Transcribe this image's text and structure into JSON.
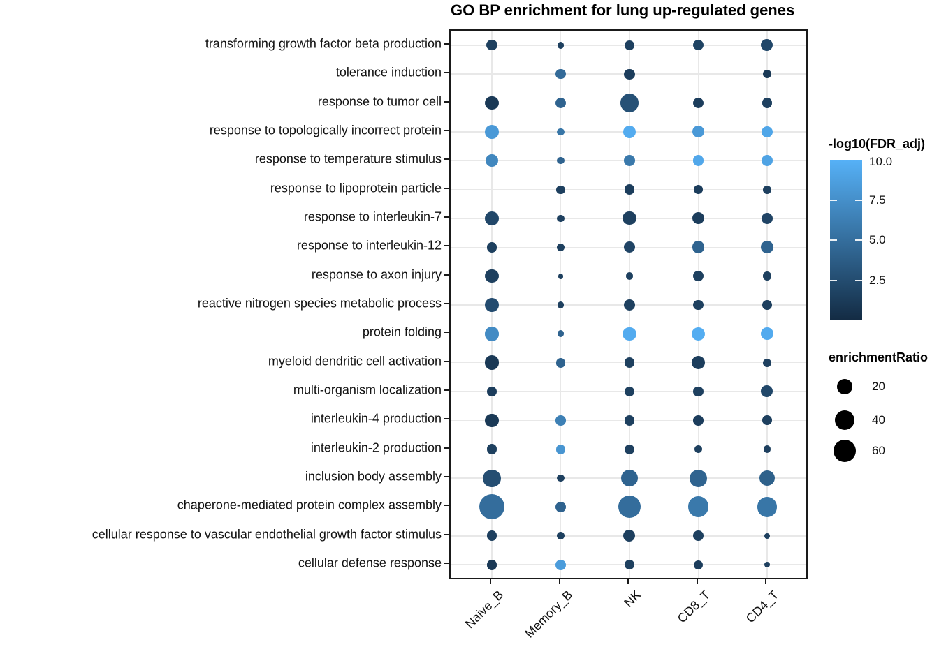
{
  "title": "GO BP enrichment for lung up-regulated genes",
  "legend_fdr": {
    "title": "-log10(FDR_adj)",
    "tick_labels": [
      "10.0",
      "7.5",
      "5.0",
      "2.5"
    ]
  },
  "legend_size": {
    "title": "enrichmentRatio",
    "labels": [
      "20",
      "40",
      "60"
    ]
  },
  "chart_data": {
    "type": "scatter",
    "subtype": "bubble-matrix-dotplot",
    "title": "GO BP enrichment for lung up-regulated genes",
    "x_categories": [
      "Naive_B",
      "Memory_B",
      "NK",
      "CD8_T",
      "CD4_T"
    ],
    "y_categories": [
      "transforming growth factor beta production",
      "tolerance induction",
      "response to tumor cell",
      "response to topologically incorrect protein",
      "response to temperature stimulus",
      "response to lipoprotein particle",
      "response to interleukin-7",
      "response to interleukin-12",
      "response to axon injury",
      "reactive nitrogen species metabolic process",
      "protein folding",
      "myeloid dendritic cell activation",
      "multi-organism localization",
      "interleukin-4 production",
      "interleukin-2 production",
      "inclusion body assembly",
      "chaperone-mediated protein complex assembly",
      "cellular response to vascular endothelial growth factor stimulus",
      "cellular defense response"
    ],
    "size_variable": "enrichmentRatio",
    "color_variable": "-log10(FDR_adj)",
    "color_scale": {
      "low_color": "#132B43",
      "high_color": "#56B1F7",
      "domain": [
        0.5,
        10
      ],
      "ticks": [
        10.0,
        7.5,
        5.0,
        2.5
      ]
    },
    "size_legend_values": [
      20,
      40,
      60
    ],
    "grid": true,
    "legend_position": "right",
    "cells": [
      [
        {
          "er": 7,
          "fdr": 2.0
        },
        {
          "er": 1,
          "fdr": 2.0
        },
        {
          "er": 5.5,
          "fdr": 2.0
        },
        {
          "er": 7,
          "fdr": 2.2
        },
        {
          "er": 10,
          "fdr": 2.5
        }
      ],
      [
        null,
        {
          "er": 5.5,
          "fdr": 5.0
        },
        {
          "er": 7,
          "fdr": 1.8
        },
        null,
        {
          "er": 3,
          "fdr": 1.5
        }
      ],
      [
        {
          "er": 14,
          "fdr": 1.5
        },
        {
          "er": 8,
          "fdr": 4.5
        },
        {
          "er": 36,
          "fdr": 3.2
        },
        {
          "er": 7,
          "fdr": 1.8
        },
        {
          "er": 5.5,
          "fdr": 2.0
        }
      ],
      [
        {
          "er": 16,
          "fdr": 8.3
        },
        {
          "er": 1.5,
          "fdr": 5.8
        },
        {
          "er": 13,
          "fdr": 9.6
        },
        {
          "er": 10,
          "fdr": 8.3
        },
        {
          "er": 9,
          "fdr": 9.2
        }
      ],
      [
        {
          "er": 12,
          "fdr": 7.0
        },
        {
          "er": 1.5,
          "fdr": 4.5
        },
        {
          "er": 8,
          "fdr": 6.0
        },
        {
          "er": 8,
          "fdr": 9.3
        },
        {
          "er": 8,
          "fdr": 9.0
        }
      ],
      [
        null,
        {
          "er": 3,
          "fdr": 2.0
        },
        {
          "er": 6.5,
          "fdr": 1.8
        },
        {
          "er": 4,
          "fdr": 1.8
        },
        {
          "er": 3,
          "fdr": 2.0
        }
      ],
      [
        {
          "er": 18,
          "fdr": 2.5
        },
        {
          "er": 1.5,
          "fdr": 2.0
        },
        {
          "er": 14,
          "fdr": 2.0
        },
        {
          "er": 10,
          "fdr": 1.8
        },
        {
          "er": 8,
          "fdr": 2.3
        }
      ],
      [
        {
          "er": 6.5,
          "fdr": 2.0
        },
        {
          "er": 2,
          "fdr": 2.0
        },
        {
          "er": 8,
          "fdr": 2.3
        },
        {
          "er": 11,
          "fdr": 4.5
        },
        {
          "er": 12,
          "fdr": 4.5
        }
      ],
      [
        {
          "er": 14,
          "fdr": 2.0
        },
        {
          "er": 0.3,
          "fdr": 2.0
        },
        {
          "er": 2,
          "fdr": 2.0
        },
        {
          "er": 6.5,
          "fdr": 2.0
        },
        {
          "er": 4,
          "fdr": 2.0
        }
      ],
      [
        {
          "er": 16,
          "fdr": 2.8
        },
        {
          "er": 1.3,
          "fdr": 2.0
        },
        {
          "er": 8,
          "fdr": 2.0
        },
        {
          "er": 6.5,
          "fdr": 2.0
        },
        {
          "er": 5,
          "fdr": 2.0
        }
      ],
      [
        {
          "er": 18,
          "fdr": 7.3
        },
        {
          "er": 1.3,
          "fdr": 4.5
        },
        {
          "er": 14,
          "fdr": 9.6
        },
        {
          "er": 14,
          "fdr": 9.7
        },
        {
          "er": 12,
          "fdr": 9.5
        }
      ],
      [
        {
          "er": 18,
          "fdr": 1.5
        },
        {
          "er": 5,
          "fdr": 4.5
        },
        {
          "er": 6.5,
          "fdr": 2.0
        },
        {
          "er": 14,
          "fdr": 1.8
        },
        {
          "er": 3,
          "fdr": 2.0
        }
      ],
      [
        {
          "er": 5,
          "fdr": 1.8
        },
        null,
        {
          "er": 5,
          "fdr": 2.0
        },
        {
          "er": 6.5,
          "fdr": 2.0
        },
        {
          "er": 10,
          "fdr": 2.5
        }
      ],
      [
        {
          "er": 14,
          "fdr": 1.5
        },
        {
          "er": 6.5,
          "fdr": 6.5
        },
        {
          "er": 6.5,
          "fdr": 2.0
        },
        {
          "er": 6.5,
          "fdr": 1.8
        },
        {
          "er": 5,
          "fdr": 2.0
        }
      ],
      [
        {
          "er": 6.5,
          "fdr": 2.0
        },
        {
          "er": 5,
          "fdr": 8.0
        },
        {
          "er": 5,
          "fdr": 2.0
        },
        {
          "er": 2,
          "fdr": 2.0
        },
        {
          "er": 2,
          "fdr": 2.0
        }
      ],
      [
        {
          "er": 30,
          "fdr": 3.0
        },
        {
          "er": 2,
          "fdr": 2.0
        },
        {
          "er": 28,
          "fdr": 4.5
        },
        {
          "er": 30,
          "fdr": 4.5
        },
        {
          "er": 22,
          "fdr": 4.3
        }
      ],
      [
        {
          "er": 75,
          "fdr": 5.2
        },
        {
          "er": 6.5,
          "fdr": 4.5
        },
        {
          "er": 55,
          "fdr": 5.2
        },
        {
          "er": 47,
          "fdr": 6.0
        },
        {
          "er": 42,
          "fdr": 5.8
        }
      ],
      [
        {
          "er": 6.5,
          "fdr": 2.0
        },
        {
          "er": 2,
          "fdr": 2.0
        },
        {
          "er": 10,
          "fdr": 2.0
        },
        {
          "er": 6.5,
          "fdr": 2.0
        },
        {
          "er": 0.3,
          "fdr": 2.0
        }
      ],
      [
        {
          "er": 6.5,
          "fdr": 1.5
        },
        {
          "er": 6.5,
          "fdr": 8.5
        },
        {
          "er": 5,
          "fdr": 2.0
        },
        {
          "er": 4,
          "fdr": 1.8
        },
        {
          "er": 0.3,
          "fdr": 2.0
        }
      ]
    ]
  }
}
